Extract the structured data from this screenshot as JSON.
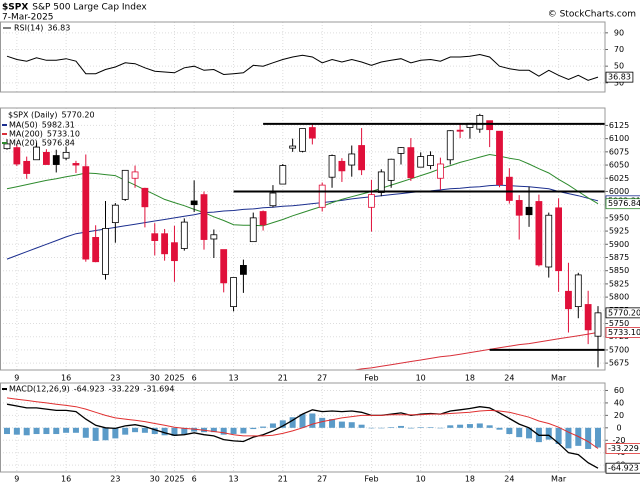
{
  "header": {
    "symbol": "$SPX",
    "name": "S&P 500 Large Cap Index",
    "date": "7-Mar-2025",
    "credit": "© StockCharts.com"
  },
  "chart_data": [
    {
      "type": "line",
      "title": "RSI(14)",
      "last_label": "36.83",
      "ylim": [
        19,
        103
      ],
      "yticks": [
        30,
        50,
        70,
        90
      ],
      "grid": true,
      "series": [
        {
          "color": "#000000",
          "values": [
            62,
            58,
            56,
            60,
            57,
            57,
            59,
            56,
            41,
            41,
            46,
            49,
            54,
            53,
            48,
            44,
            43,
            42,
            48,
            50,
            45,
            46,
            40,
            41,
            42,
            51,
            50,
            54,
            58,
            61,
            63,
            61,
            54,
            58,
            55,
            58,
            55,
            51,
            55,
            57,
            59,
            54,
            57,
            58,
            56,
            61,
            61,
            62,
            64,
            61,
            50,
            47,
            45,
            45,
            38,
            45,
            39,
            34,
            39,
            33,
            36.83
          ]
        }
      ]
    },
    {
      "type": "candlestick",
      "title": "$SPX (Daily)",
      "last_label": "5770.20",
      "ylim": [
        5662,
        6158
      ],
      "yticks": [
        5675,
        5700,
        5725,
        5750,
        5775,
        5800,
        5825,
        5850,
        5875,
        5900,
        5925,
        5950,
        5975,
        6000,
        6025,
        6050,
        6075,
        6100,
        6125
      ],
      "grid": true,
      "up_color": "#000000",
      "down_color": "#e0103a",
      "categories": [
        null,
        "9",
        null,
        null,
        null,
        null,
        "16",
        null,
        null,
        null,
        null,
        "23",
        null,
        null,
        null,
        "30",
        null,
        "2025",
        null,
        "6",
        null,
        null,
        null,
        "13",
        null,
        null,
        null,
        null,
        "21",
        null,
        null,
        null,
        "27",
        null,
        null,
        null,
        null,
        "Feb",
        null,
        null,
        null,
        null,
        "10",
        null,
        null,
        null,
        null,
        "18",
        null,
        null,
        null,
        "24",
        null,
        null,
        null,
        null,
        "Mar",
        null,
        null,
        null,
        null
      ],
      "open": [
        6081,
        6083,
        6057,
        6060,
        6074,
        6068,
        6063,
        6053,
        6047,
        5913,
        5843,
        5941,
        5985,
        6025,
        6006,
        5920,
        5920,
        5903,
        5892,
        5982,
        5994,
        5910,
        5890,
        5782,
        5860,
        5905,
        5962,
        5973,
        6014,
        6082,
        6076,
        6121,
        5970,
        6027,
        6057,
        6050,
        6087,
        5970,
        5998,
        6021,
        6072,
        6083,
        6046,
        6049,
        6025,
        6060,
        6116,
        6121,
        6118,
        6134,
        6114,
        6027,
        5983,
        5970,
        5981,
        5857,
        5969,
        5811,
        5782,
        5786,
        5726
      ],
      "high": [
        6099,
        6088,
        6066,
        6092,
        6080,
        6079,
        6085,
        6058,
        6070,
        5936,
        5982,
        5978,
        6040,
        6049,
        6007,
        5940,
        5929,
        5935,
        5949,
        6021,
        6000,
        5928,
        5890,
        5837,
        5871,
        5960,
        5964,
        6012,
        6052,
        6100,
        6118,
        6128,
        6017,
        6070,
        6063,
        6087,
        6120,
        6022,
        6042,
        6062,
        6084,
        6101,
        6074,
        6076,
        6064,
        6116,
        6127,
        6129,
        6147,
        6134,
        6114,
        6044,
        5993,
        6009,
        5994,
        5960,
        5987,
        5865,
        5846,
        5812,
        5783
      ],
      "low": [
        6079,
        6048,
        6024,
        6060,
        6051,
        6036,
        6059,
        6035,
        5867,
        5866,
        5833,
        5903,
        5982,
        6007,
        5932,
        5879,
        5869,
        5829,
        5888,
        5961,
        5890,
        5874,
        5809,
        5773,
        5808,
        5905,
        5926,
        5970,
        6014,
        6075,
        6074,
        6089,
        5962,
        6007,
        6018,
        6028,
        6031,
        5924,
        5991,
        6007,
        6051,
        6020,
        6046,
        6042,
        6003,
        6051,
        6101,
        6100,
        6111,
        6084,
        6008,
        5977,
        5909,
        5933,
        5858,
        5837,
        5810,
        5733,
        5760,
        5711,
        5667
      ],
      "close": [
        6090,
        6052,
        6034,
        6084,
        6051,
        6051,
        6074,
        6050,
        5872,
        5867,
        5930,
        5974,
        6040,
        6037,
        5971,
        5907,
        5882,
        5869,
        5942,
        5975,
        5909,
        5918,
        5827,
        5837,
        5843,
        5950,
        5937,
        5997,
        6049,
        6086,
        6119,
        6101,
        6012,
        6068,
        6039,
        6071,
        6041,
        5994,
        6037,
        6061,
        6083,
        6026,
        6066,
        6068,
        6052,
        6115,
        6114,
        6129,
        6144,
        6117,
        6013,
        5983,
        5955,
        5956,
        5861,
        5955,
        5850,
        5778,
        5842,
        5738,
        5770.2
      ],
      "overlays": [
        {
          "name": "MA(50)",
          "color": "#1c2f8f",
          "last_label": "5982.31",
          "values": [
            5872,
            5879,
            5886,
            5893,
            5900,
            5907,
            5914,
            5920,
            5923,
            5926,
            5929,
            5932,
            5935,
            5938,
            5941,
            5944,
            5947,
            5950,
            5953,
            5956,
            5960,
            5961,
            5963,
            5964,
            5966,
            5967,
            5969,
            5970,
            5972,
            5973,
            5975,
            5977,
            5979,
            5981,
            5983,
            5986,
            5988,
            5990,
            5992,
            5994,
            5996,
            5998,
            6000,
            6001,
            6003,
            6005,
            6006,
            6008,
            6009,
            6011,
            6012,
            6011,
            6010,
            6009,
            6007,
            6005,
            6000,
            5996,
            5992,
            5987,
            5982.31
          ]
        },
        {
          "name": "MA(200)",
          "color": "#d9303a",
          "last_label": "5733.10",
          "values": [
            5560,
            5563,
            5566,
            5569,
            5572,
            5574,
            5577,
            5580,
            5583,
            5586,
            5589,
            5592,
            5595,
            5597,
            5600,
            5603,
            5606,
            5609,
            5612,
            5615,
            5618,
            5620,
            5623,
            5626,
            5629,
            5632,
            5635,
            5638,
            5641,
            5643,
            5646,
            5649,
            5652,
            5655,
            5658,
            5661,
            5664,
            5666,
            5669,
            5672,
            5675,
            5678,
            5681,
            5684,
            5687,
            5689,
            5692,
            5695,
            5698,
            5701,
            5704,
            5707,
            5710,
            5712,
            5715,
            5718,
            5721,
            5724,
            5727,
            5730,
            5733.1
          ]
        },
        {
          "name": "MA(20)",
          "color": "#2e8b2e",
          "last_label": "5976.84",
          "values": [
            6005,
            6009,
            6013,
            6017,
            6021,
            6024,
            6028,
            6031,
            6035,
            6034,
            6032,
            6030,
            6021,
            6012,
            6003,
            5994,
            5985,
            5979,
            5973,
            5966,
            5960,
            5952,
            5945,
            5937,
            5936,
            5936,
            5935,
            5941,
            5947,
            5954,
            5960,
            5966,
            5972,
            5979,
            5985,
            5990,
            5995,
            6000,
            6006,
            6012,
            6018,
            6024,
            6030,
            6036,
            6043,
            6049,
            6055,
            6060,
            6065,
            6070,
            6067,
            6063,
            6060,
            6052,
            6043,
            6035,
            6023,
            6012,
            6000,
            5988,
            5976.84
          ]
        }
      ],
      "levels": [
        {
          "value": 6128,
          "x": [
            26,
            60
          ]
        },
        {
          "value": 6000,
          "x": [
            23,
            60
          ]
        },
        {
          "value": 5700,
          "x": [
            49,
            60
          ]
        }
      ]
    },
    {
      "type": "macd",
      "title": "MACD(12,26,9)",
      "ylim": [
        -71,
        72
      ],
      "yticks": [
        -60,
        -40,
        -20,
        0,
        20,
        40,
        60
      ],
      "grid": true,
      "series": [
        {
          "style": "line",
          "color": "#000000",
          "last_label": "-64.923",
          "values": [
            38,
            35,
            32,
            32,
            30,
            28,
            28,
            26,
            14,
            4,
            0,
            -1,
            3,
            5,
            2,
            -3,
            -8,
            -12,
            -11,
            -8,
            -11,
            -13,
            -19,
            -21,
            -22,
            -15,
            -11,
            -5,
            3,
            12,
            22,
            29,
            26,
            27,
            26,
            27,
            25,
            20,
            20,
            22,
            24,
            20,
            22,
            23,
            22,
            27,
            29,
            31,
            34,
            32,
            24,
            15,
            6,
            0,
            -12,
            -12,
            -25,
            -40,
            -43,
            -56,
            -64.923
          ]
        },
        {
          "style": "line",
          "color": "#e03030",
          "last_label": "-33.229",
          "values": [
            48,
            46,
            44,
            42,
            40,
            38,
            36,
            34,
            30,
            25,
            20,
            16,
            14,
            12,
            10,
            7,
            4,
            1,
            -1,
            -2,
            -4,
            -6,
            -8,
            -11,
            -13,
            -13,
            -13,
            -12,
            -9,
            -5,
            0,
            6,
            10,
            13,
            16,
            18,
            20,
            20,
            20,
            21,
            21,
            21,
            21,
            22,
            22,
            23,
            24,
            25,
            27,
            28,
            27,
            25,
            21,
            17,
            11,
            7,
            1,
            -7,
            -14,
            -22,
            -33.229
          ]
        },
        {
          "style": "bar",
          "color": "#5b9bc8",
          "last_label": "-31.694",
          "values": [
            -10,
            -11,
            -12,
            -10,
            -10,
            -10,
            -8,
            -8,
            -16,
            -21,
            -20,
            -17,
            -11,
            -7,
            -8,
            -10,
            -12,
            -13,
            -10,
            -6,
            -7,
            -7,
            -11,
            -10,
            -9,
            -2,
            2,
            7,
            12,
            17,
            22,
            23,
            16,
            14,
            10,
            9,
            5,
            0,
            0,
            1,
            3,
            -1,
            1,
            1,
            0,
            4,
            5,
            6,
            7,
            4,
            -3,
            -10,
            -15,
            -17,
            -23,
            -19,
            -26,
            -33,
            -29,
            -34,
            -31.694
          ]
        }
      ]
    }
  ]
}
